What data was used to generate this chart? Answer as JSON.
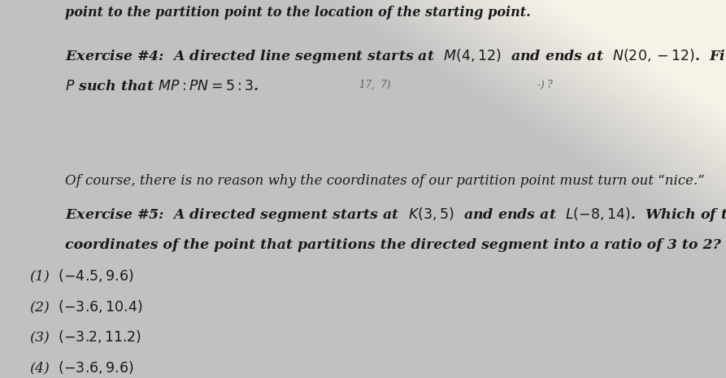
{
  "background_color_left": "#b0b0b0",
  "background_color_mid": "#c8c8c8",
  "background_color_right": "#e8e4de",
  "top_text": "point to the partition point to the location of the starting point.",
  "exercise4_line1": "Exercise #4:  A directed line segment starts at  $M(4, 12)$  and ends at  $N(20, -12)$.  Find the coordinates of",
  "exercise4_line2": "$P$ such that $MP:PN = 5:3$.",
  "exercise4_annotation1": "17,  7)",
  "exercise4_annotation2": "-) ?",
  "italic_text": "Of course, there is no reason why the coordinates of our partition point must turn out “nice.”",
  "exercise5_line1": "Exercise #5:  A directed segment starts at  $K(3, 5)$  and ends at  $L(-8, 14)$.  Which of the following",
  "exercise5_line2": "coordinates of the point that partitions the directed segment into a ratio of 3 to 2?",
  "choice1": "(1)  $(-4.5, 9.6)$",
  "choice2": "(2)  $(-3.6, 10.4)$",
  "choice3": "(3)  $(-3.2, 11.2)$",
  "choice4": "(4)  $(-3.6, 9.6)$",
  "text_color": "#1a1a1a",
  "font_size_main": 12.5,
  "font_size_top": 11.5,
  "font_size_italic": 12.0
}
